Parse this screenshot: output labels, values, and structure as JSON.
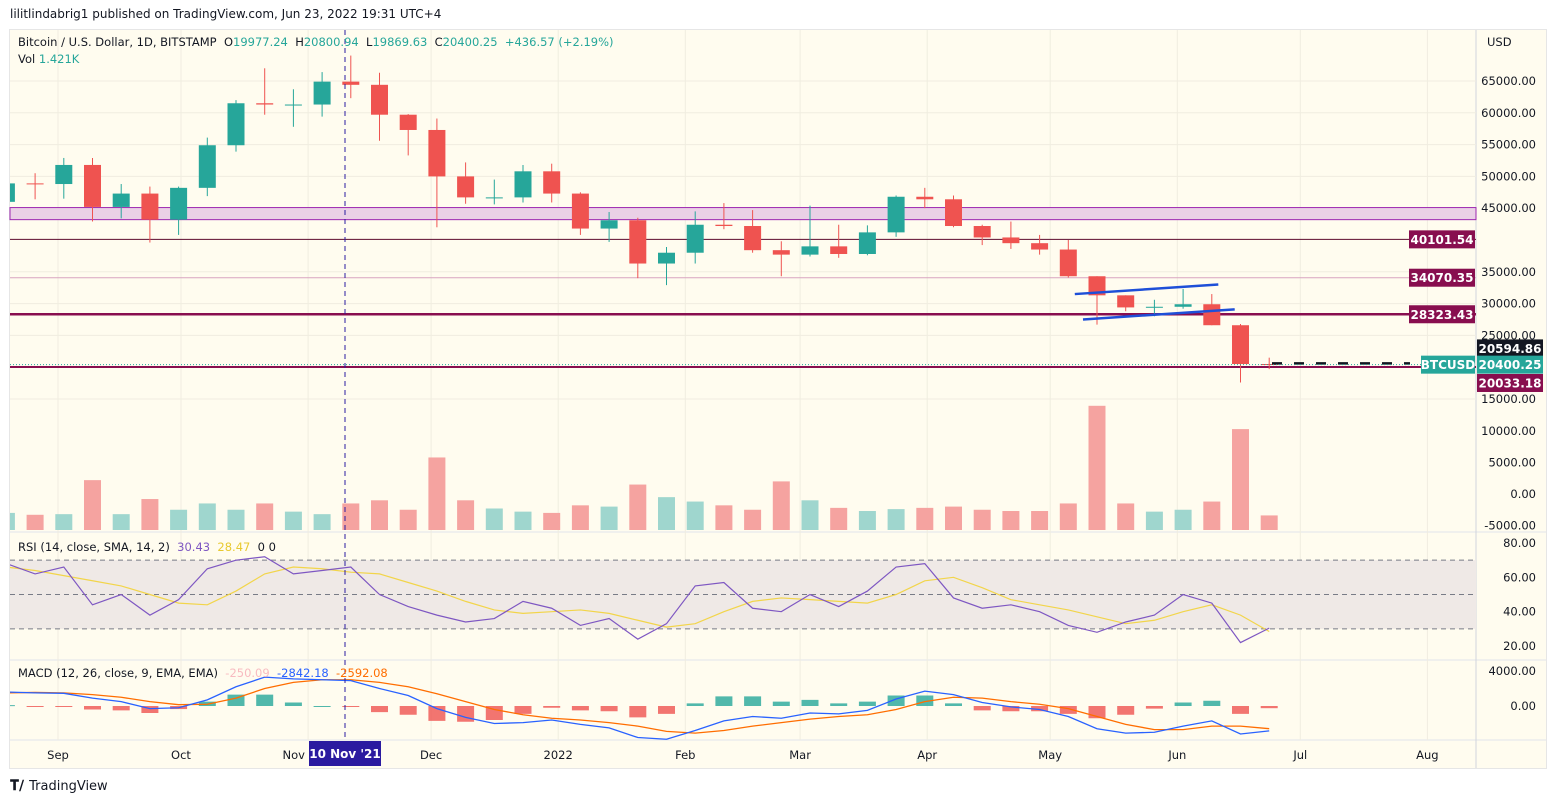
{
  "publisher": "lilitlindabrig1 published on TradingView.com, Jun 23, 2022 19:31 UTC+4",
  "footer": {
    "logo_text": "TradingView"
  },
  "legend": {
    "symbol": "Bitcoin / U.S. Dollar, 1D, BITSTAMP",
    "o_label": "O",
    "o": "19977.24",
    "h_label": "H",
    "h": "20800.94",
    "l_label": "L",
    "l": "19869.63",
    "c_label": "C",
    "c": "20400.25",
    "change": "+436.57 (+2.19%)",
    "vol_label": "Vol",
    "vol": "1.421K"
  },
  "rsi_legend": {
    "title": "RSI (14, close, SMA, 14, 2)",
    "rsi": "30.43",
    "sma": "28.47",
    "extra1": "0",
    "extra2": "0"
  },
  "macd_legend": {
    "title": "MACD (12, 26, close, 9, EMA, EMA)",
    "hist": "-250.09",
    "macd": "-2842.18",
    "signal": "-2592.08"
  },
  "colors": {
    "up": "#26a69a",
    "down": "#ef5350",
    "background": "#fffcef",
    "level": "#880e4f",
    "zone": "#e1bee7",
    "channel": "#1e4fd8",
    "crosshair": "#2b1ba0",
    "rsi": "#7e57c2",
    "rsi_sma": "#f2d54a",
    "macd": "#2962ff",
    "signal": "#ff6d00"
  },
  "crosshair": {
    "date_label": "10 Nov '21",
    "date": "2021-11-10"
  },
  "chart_data": {
    "type": "candlestick",
    "symbol": "BTCUSD",
    "currency": "USD",
    "interval_note": "weekly approximation of daily candles",
    "y_ticks": [
      "65000.00",
      "60000.00",
      "55000.00",
      "50000.00",
      "45000.00",
      "35000.00",
      "30000.00",
      "25000.00",
      "15000.00"
    ],
    "volume_ticks": [
      "10000.00",
      "5000.00",
      "0.00",
      "-5000.00"
    ],
    "rsi_ticks": [
      "80.00",
      "60.00",
      "40.00",
      "20.00"
    ],
    "macd_ticks": [
      "4000.00",
      "0.00"
    ],
    "x_ticks": [
      {
        "label": "Sep",
        "date": "2021-09-01"
      },
      {
        "label": "Oct",
        "date": "2021-10-01"
      },
      {
        "label": "Nov",
        "date": "2021-11-01"
      },
      {
        "label": "Dec",
        "date": "2021-12-01"
      },
      {
        "label": "2022",
        "date": "2022-01-01"
      },
      {
        "label": "Feb",
        "date": "2022-02-01"
      },
      {
        "label": "Mar",
        "date": "2022-03-01"
      },
      {
        "label": "Apr",
        "date": "2022-04-01"
      },
      {
        "label": "May",
        "date": "2022-05-01"
      },
      {
        "label": "Jun",
        "date": "2022-06-01"
      },
      {
        "label": "Jul",
        "date": "2022-07-01"
      },
      {
        "label": "Aug",
        "date": "2022-08-01"
      }
    ],
    "price_labels": [
      {
        "value": "40101.54",
        "kind": "level"
      },
      {
        "value": "34070.35",
        "kind": "level"
      },
      {
        "value": "28323.43",
        "kind": "level"
      },
      {
        "value": "20594.86",
        "kind": "dark"
      },
      {
        "value": "20400.25",
        "kind": "last",
        "tag": "BTCUSD"
      },
      {
        "value": "20033.18",
        "kind": "level"
      }
    ],
    "zone": [
      43200,
      45100
    ],
    "channel": [
      {
        "from": {
          "date": "2022-05-07",
          "price": 31500
        },
        "to": {
          "date": "2022-06-11",
          "price": 33000
        }
      },
      {
        "from": {
          "date": "2022-05-09",
          "price": 27500
        },
        "to": {
          "date": "2022-06-15",
          "price": 29100
        }
      }
    ],
    "candles": [
      {
        "d": "2021-08-16",
        "o": 46000,
        "h": 49500,
        "l": 44800,
        "c": 48900,
        "v": -3000,
        "rsi": 68,
        "rsma": 66,
        "macd": 1600,
        "sig": 1500
      },
      {
        "d": "2021-08-23",
        "o": 48900,
        "h": 50500,
        "l": 46400,
        "c": 48800,
        "v": -3300,
        "rsi": 62,
        "rsma": 64,
        "macd": 1500,
        "sig": 1550
      },
      {
        "d": "2021-08-30",
        "o": 48800,
        "h": 52900,
        "l": 46500,
        "c": 51800,
        "v": -3200,
        "rsi": 66,
        "rsma": 61,
        "macd": 1450,
        "sig": 1500
      },
      {
        "d": "2021-09-06",
        "o": 51800,
        "h": 52900,
        "l": 42900,
        "c": 45200,
        "v": 2200,
        "rsi": 44,
        "rsma": 58,
        "macd": 900,
        "sig": 1300
      },
      {
        "d": "2021-09-13",
        "o": 45200,
        "h": 48800,
        "l": 43400,
        "c": 47300,
        "v": -3200,
        "rsi": 50,
        "rsma": 55,
        "macd": 500,
        "sig": 1000
      },
      {
        "d": "2021-09-20",
        "o": 47300,
        "h": 48400,
        "l": 39600,
        "c": 43200,
        "v": -800,
        "rsi": 38,
        "rsma": 50,
        "macd": -300,
        "sig": 500
      },
      {
        "d": "2021-09-27",
        "o": 43200,
        "h": 48400,
        "l": 40800,
        "c": 48200,
        "v": -2500,
        "rsi": 47,
        "rsma": 45,
        "macd": -200,
        "sig": 150
      },
      {
        "d": "2021-10-04",
        "o": 48200,
        "h": 56100,
        "l": 46900,
        "c": 54900,
        "v": -1500,
        "rsi": 65,
        "rsma": 44,
        "macd": 700,
        "sig": 200
      },
      {
        "d": "2021-10-11",
        "o": 54900,
        "h": 62000,
        "l": 53900,
        "c": 61500,
        "v": -2500,
        "rsi": 70,
        "rsma": 52,
        "macd": 2200,
        "sig": 900
      },
      {
        "d": "2021-10-18",
        "o": 61500,
        "h": 67000,
        "l": 59700,
        "c": 61300,
        "v": -1500,
        "rsi": 72,
        "rsma": 62,
        "macd": 3300,
        "sig": 2000
      },
      {
        "d": "2021-10-25",
        "o": 61300,
        "h": 63700,
        "l": 57800,
        "c": 61300,
        "v": -2800,
        "rsi": 62,
        "rsma": 66,
        "macd": 3100,
        "sig": 2700
      },
      {
        "d": "2021-11-01",
        "o": 61300,
        "h": 66400,
        "l": 59400,
        "c": 64900,
        "v": -3200,
        "rsi": 64,
        "rsma": 65,
        "macd": 3000,
        "sig": 3000
      },
      {
        "d": "2021-11-08",
        "o": 64900,
        "h": 69000,
        "l": 62300,
        "c": 64400,
        "v": -1500,
        "rsi": 66,
        "rsma": 63,
        "macd": 2900,
        "sig": 3000
      },
      {
        "d": "2021-11-15",
        "o": 64400,
        "h": 66300,
        "l": 55600,
        "c": 59700,
        "v": -1000,
        "rsi": 50,
        "rsma": 62,
        "macd": 2000,
        "sig": 2700
      },
      {
        "d": "2021-11-22",
        "o": 59700,
        "h": 59800,
        "l": 53300,
        "c": 57300,
        "v": -2500,
        "rsi": 43,
        "rsma": 57,
        "macd": 1200,
        "sig": 2200
      },
      {
        "d": "2021-11-29",
        "o": 57300,
        "h": 59100,
        "l": 42000,
        "c": 50000,
        "v": 5800,
        "rsi": 38,
        "rsma": 52,
        "macd": -300,
        "sig": 1400
      },
      {
        "d": "2021-12-06",
        "o": 50000,
        "h": 52200,
        "l": 45700,
        "c": 46700,
        "v": -1000,
        "rsi": 34,
        "rsma": 46,
        "macd": -1300,
        "sig": 500
      },
      {
        "d": "2021-12-13",
        "o": 46700,
        "h": 49500,
        "l": 45600,
        "c": 46700,
        "v": -2300,
        "rsi": 36,
        "rsma": 41,
        "macd": -2000,
        "sig": -400
      },
      {
        "d": "2021-12-20",
        "o": 46700,
        "h": 51800,
        "l": 45900,
        "c": 50800,
        "v": -2800,
        "rsi": 46,
        "rsma": 39,
        "macd": -1900,
        "sig": -1000
      },
      {
        "d": "2021-12-27",
        "o": 50800,
        "h": 52000,
        "l": 45900,
        "c": 47300,
        "v": -3000,
        "rsi": 42,
        "rsma": 40,
        "macd": -1600,
        "sig": -1400
      },
      {
        "d": "2022-01-03",
        "o": 47300,
        "h": 47500,
        "l": 40800,
        "c": 41800,
        "v": -1800,
        "rsi": 32,
        "rsma": 41,
        "macd": -2100,
        "sig": -1600
      },
      {
        "d": "2022-01-10",
        "o": 41800,
        "h": 44400,
        "l": 39700,
        "c": 43100,
        "v": -2000,
        "rsi": 36,
        "rsma": 39,
        "macd": -2500,
        "sig": -1900
      },
      {
        "d": "2022-01-17",
        "o": 43100,
        "h": 43500,
        "l": 34000,
        "c": 36300,
        "v": 1500,
        "rsi": 24,
        "rsma": 35,
        "macd": -3600,
        "sig": -2300
      },
      {
        "d": "2022-01-24",
        "o": 36300,
        "h": 38900,
        "l": 32900,
        "c": 38000,
        "v": -500,
        "rsi": 33,
        "rsma": 31,
        "macd": -3800,
        "sig": -2900
      },
      {
        "d": "2022-01-31",
        "o": 38000,
        "h": 44500,
        "l": 36300,
        "c": 42400,
        "v": -1200,
        "rsi": 55,
        "rsma": 33,
        "macd": -2800,
        "sig": -3100
      },
      {
        "d": "2022-02-07",
        "o": 42400,
        "h": 45800,
        "l": 41700,
        "c": 42200,
        "v": -1800,
        "rsi": 57,
        "rsma": 40,
        "macd": -1700,
        "sig": -2800
      },
      {
        "d": "2022-02-14",
        "o": 42200,
        "h": 44700,
        "l": 38000,
        "c": 38400,
        "v": -2500,
        "rsi": 42,
        "rsma": 46,
        "macd": -1200,
        "sig": -2300
      },
      {
        "d": "2022-02-21",
        "o": 38400,
        "h": 39800,
        "l": 34300,
        "c": 37700,
        "v": 2000,
        "rsi": 40,
        "rsma": 48,
        "macd": -1400,
        "sig": -1900
      },
      {
        "d": "2022-02-28",
        "o": 37700,
        "h": 45400,
        "l": 37400,
        "c": 39000,
        "v": -1000,
        "rsi": 50,
        "rsma": 47,
        "macd": -800,
        "sig": -1500
      },
      {
        "d": "2022-03-07",
        "o": 39000,
        "h": 42400,
        "l": 37200,
        "c": 37800,
        "v": -2200,
        "rsi": 43,
        "rsma": 46,
        "macd": -900,
        "sig": -1200
      },
      {
        "d": "2022-03-14",
        "o": 37800,
        "h": 42300,
        "l": 37600,
        "c": 41200,
        "v": -2700,
        "rsi": 52,
        "rsma": 45,
        "macd": -500,
        "sig": -1000
      },
      {
        "d": "2022-03-21",
        "o": 41200,
        "h": 47000,
        "l": 40500,
        "c": 46800,
        "v": -2400,
        "rsi": 66,
        "rsma": 50,
        "macd": 800,
        "sig": -400
      },
      {
        "d": "2022-03-28",
        "o": 46800,
        "h": 48200,
        "l": 45000,
        "c": 46400,
        "v": -2200,
        "rsi": 68,
        "rsma": 58,
        "macd": 1700,
        "sig": 500
      },
      {
        "d": "2022-04-04",
        "o": 46400,
        "h": 47000,
        "l": 42000,
        "c": 42200,
        "v": -2000,
        "rsi": 48,
        "rsma": 60,
        "macd": 1300,
        "sig": 1000
      },
      {
        "d": "2022-04-11",
        "o": 42200,
        "h": 42400,
        "l": 39200,
        "c": 40400,
        "v": -2500,
        "rsi": 42,
        "rsma": 54,
        "macd": 400,
        "sig": 900
      },
      {
        "d": "2022-04-18",
        "o": 40400,
        "h": 42900,
        "l": 38600,
        "c": 39500,
        "v": -2700,
        "rsi": 44,
        "rsma": 47,
        "macd": -100,
        "sig": 500
      },
      {
        "d": "2022-04-25",
        "o": 39500,
        "h": 40800,
        "l": 37700,
        "c": 38500,
        "v": -2700,
        "rsi": 40,
        "rsma": 44,
        "macd": -400,
        "sig": 200
      },
      {
        "d": "2022-05-02",
        "o": 38500,
        "h": 40000,
        "l": 34100,
        "c": 34300,
        "v": -1500,
        "rsi": 32,
        "rsma": 41,
        "macd": -1200,
        "sig": -300
      },
      {
        "d": "2022-05-09",
        "o": 34300,
        "h": 34300,
        "l": 26700,
        "c": 31300,
        "v": 14000,
        "rsi": 28,
        "rsma": 37,
        "macd": -2600,
        "sig": -1200
      },
      {
        "d": "2022-05-16",
        "o": 31300,
        "h": 31300,
        "l": 28800,
        "c": 29400,
        "v": -1500,
        "rsi": 34,
        "rsma": 33,
        "macd": -3100,
        "sig": -2100
      },
      {
        "d": "2022-05-23",
        "o": 29400,
        "h": 30600,
        "l": 28000,
        "c": 29500,
        "v": -2800,
        "rsi": 38,
        "rsma": 35,
        "macd": -3000,
        "sig": -2700
      },
      {
        "d": "2022-05-30",
        "o": 29500,
        "h": 32300,
        "l": 29200,
        "c": 29900,
        "v": -2500,
        "rsi": 50,
        "rsma": 40,
        "macd": -2300,
        "sig": -2700
      },
      {
        "d": "2022-06-06",
        "o": 29900,
        "h": 31500,
        "l": 26600,
        "c": 26600,
        "v": -1200,
        "rsi": 45,
        "rsma": 44,
        "macd": -1700,
        "sig": -2300
      },
      {
        "d": "2022-06-13",
        "o": 26600,
        "h": 26800,
        "l": 17600,
        "c": 20500,
        "v": 10300,
        "rsi": 22,
        "rsma": 38,
        "macd": -3200,
        "sig": -2300
      },
      {
        "d": "2022-06-20",
        "o": 20500,
        "h": 21500,
        "l": 19700,
        "c": 20400,
        "v": -3400,
        "rsi": 30.43,
        "rsma": 28.47,
        "macd": -2842.18,
        "sig": -2592.08
      }
    ]
  }
}
